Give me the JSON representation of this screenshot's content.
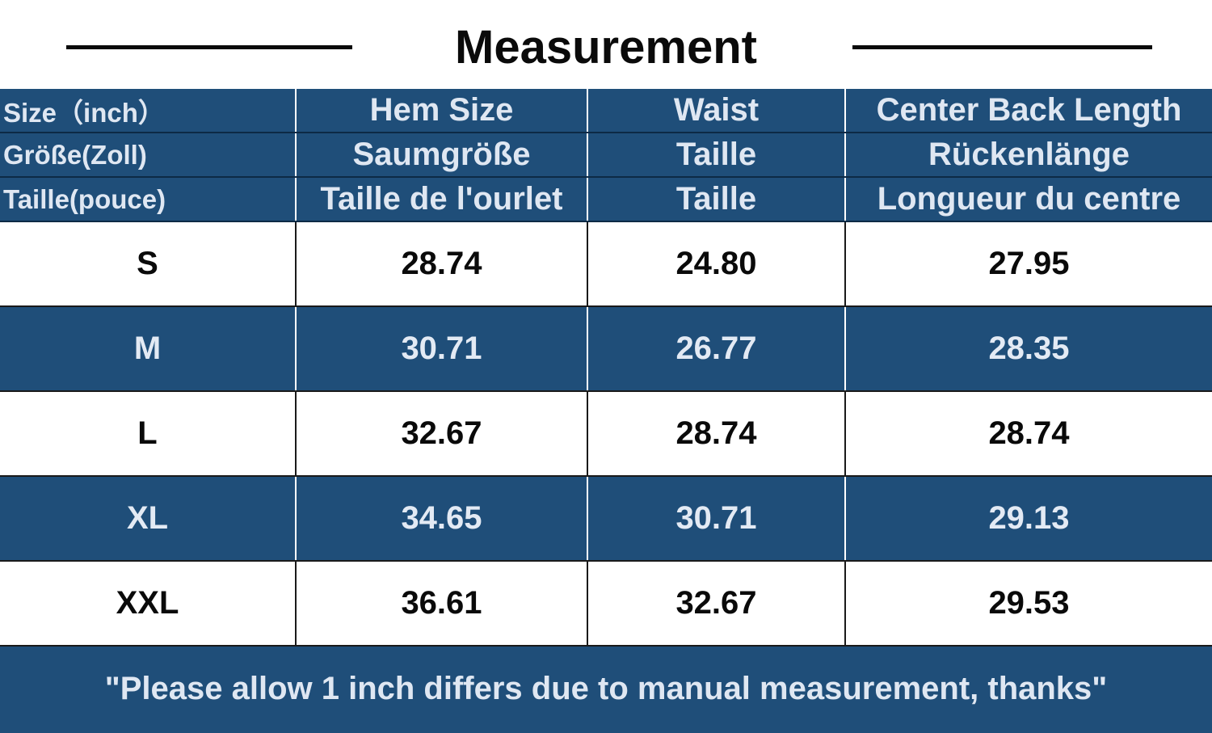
{
  "title": "Measurement",
  "header_rows": [
    [
      "Size（inch）",
      "Hem Size",
      "Waist",
      "Center Back Length"
    ],
    [
      "Größe(Zoll)",
      "Saumgröße",
      "Taille",
      "Rückenlänge"
    ],
    [
      "Taille(pouce)",
      "Taille de l'ourlet",
      "Taille",
      "Longueur du centre"
    ]
  ],
  "rows": [
    [
      "S",
      "28.74",
      "24.80",
      "27.95"
    ],
    [
      "M",
      "30.71",
      "26.77",
      "28.35"
    ],
    [
      "L",
      "32.67",
      "28.74",
      "28.74"
    ],
    [
      "XL",
      "34.65",
      "30.71",
      "29.13"
    ],
    [
      "XXL",
      "36.61",
      "32.67",
      "29.53"
    ]
  ],
  "note": "\"Please allow 1 inch differs due to manual measurement, thanks\"",
  "colors": {
    "header_bg": "#1f4e79",
    "text_dark": "#0a0a0a",
    "text_light": "#dfe7f2"
  }
}
